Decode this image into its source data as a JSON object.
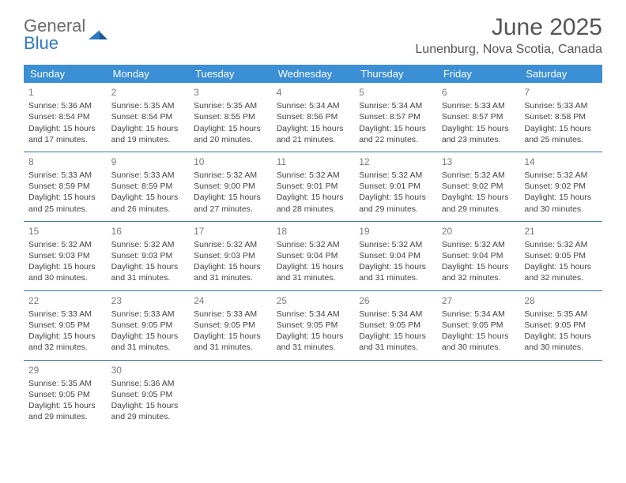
{
  "brand": {
    "name_part1": "General",
    "name_part2": "Blue",
    "color_gray": "#6b6b6b",
    "color_blue": "#2f79c2",
    "mark_color": "#2f79c2"
  },
  "header": {
    "month_title": "June 2025",
    "location": "Lunenburg, Nova Scotia, Canada"
  },
  "style": {
    "header_bg": "#3b8fd4",
    "header_fg": "#ffffff",
    "row_border": "#3b6fa3",
    "text_color": "#444444",
    "daynum_color": "#7a7a7a"
  },
  "weekdays": [
    "Sunday",
    "Monday",
    "Tuesday",
    "Wednesday",
    "Thursday",
    "Friday",
    "Saturday"
  ],
  "days": [
    {
      "n": "1",
      "sr": "5:36 AM",
      "ss": "8:54 PM",
      "dl": "15 hours and 17 minutes."
    },
    {
      "n": "2",
      "sr": "5:35 AM",
      "ss": "8:54 PM",
      "dl": "15 hours and 19 minutes."
    },
    {
      "n": "3",
      "sr": "5:35 AM",
      "ss": "8:55 PM",
      "dl": "15 hours and 20 minutes."
    },
    {
      "n": "4",
      "sr": "5:34 AM",
      "ss": "8:56 PM",
      "dl": "15 hours and 21 minutes."
    },
    {
      "n": "5",
      "sr": "5:34 AM",
      "ss": "8:57 PM",
      "dl": "15 hours and 22 minutes."
    },
    {
      "n": "6",
      "sr": "5:33 AM",
      "ss": "8:57 PM",
      "dl": "15 hours and 23 minutes."
    },
    {
      "n": "7",
      "sr": "5:33 AM",
      "ss": "8:58 PM",
      "dl": "15 hours and 25 minutes."
    },
    {
      "n": "8",
      "sr": "5:33 AM",
      "ss": "8:59 PM",
      "dl": "15 hours and 25 minutes."
    },
    {
      "n": "9",
      "sr": "5:33 AM",
      "ss": "8:59 PM",
      "dl": "15 hours and 26 minutes."
    },
    {
      "n": "10",
      "sr": "5:32 AM",
      "ss": "9:00 PM",
      "dl": "15 hours and 27 minutes."
    },
    {
      "n": "11",
      "sr": "5:32 AM",
      "ss": "9:01 PM",
      "dl": "15 hours and 28 minutes."
    },
    {
      "n": "12",
      "sr": "5:32 AM",
      "ss": "9:01 PM",
      "dl": "15 hours and 29 minutes."
    },
    {
      "n": "13",
      "sr": "5:32 AM",
      "ss": "9:02 PM",
      "dl": "15 hours and 29 minutes."
    },
    {
      "n": "14",
      "sr": "5:32 AM",
      "ss": "9:02 PM",
      "dl": "15 hours and 30 minutes."
    },
    {
      "n": "15",
      "sr": "5:32 AM",
      "ss": "9:03 PM",
      "dl": "15 hours and 30 minutes."
    },
    {
      "n": "16",
      "sr": "5:32 AM",
      "ss": "9:03 PM",
      "dl": "15 hours and 31 minutes."
    },
    {
      "n": "17",
      "sr": "5:32 AM",
      "ss": "9:03 PM",
      "dl": "15 hours and 31 minutes."
    },
    {
      "n": "18",
      "sr": "5:32 AM",
      "ss": "9:04 PM",
      "dl": "15 hours and 31 minutes."
    },
    {
      "n": "19",
      "sr": "5:32 AM",
      "ss": "9:04 PM",
      "dl": "15 hours and 31 minutes."
    },
    {
      "n": "20",
      "sr": "5:32 AM",
      "ss": "9:04 PM",
      "dl": "15 hours and 32 minutes."
    },
    {
      "n": "21",
      "sr": "5:32 AM",
      "ss": "9:05 PM",
      "dl": "15 hours and 32 minutes."
    },
    {
      "n": "22",
      "sr": "5:33 AM",
      "ss": "9:05 PM",
      "dl": "15 hours and 32 minutes."
    },
    {
      "n": "23",
      "sr": "5:33 AM",
      "ss": "9:05 PM",
      "dl": "15 hours and 31 minutes."
    },
    {
      "n": "24",
      "sr": "5:33 AM",
      "ss": "9:05 PM",
      "dl": "15 hours and 31 minutes."
    },
    {
      "n": "25",
      "sr": "5:34 AM",
      "ss": "9:05 PM",
      "dl": "15 hours and 31 minutes."
    },
    {
      "n": "26",
      "sr": "5:34 AM",
      "ss": "9:05 PM",
      "dl": "15 hours and 31 minutes."
    },
    {
      "n": "27",
      "sr": "5:34 AM",
      "ss": "9:05 PM",
      "dl": "15 hours and 30 minutes."
    },
    {
      "n": "28",
      "sr": "5:35 AM",
      "ss": "9:05 PM",
      "dl": "15 hours and 30 minutes."
    },
    {
      "n": "29",
      "sr": "5:35 AM",
      "ss": "9:05 PM",
      "dl": "15 hours and 29 minutes."
    },
    {
      "n": "30",
      "sr": "5:36 AM",
      "ss": "9:05 PM",
      "dl": "15 hours and 29 minutes."
    }
  ],
  "labels": {
    "sunrise": "Sunrise: ",
    "sunset": "Sunset: ",
    "daylight": "Daylight: "
  }
}
